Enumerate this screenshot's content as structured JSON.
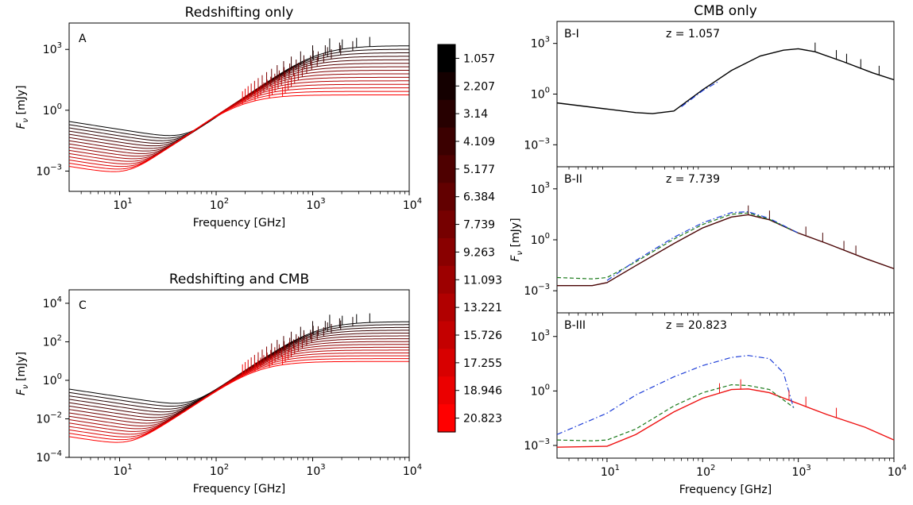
{
  "chart_data": [
    {
      "id": "A",
      "type": "line",
      "title": "Redshifting only",
      "panel_label": "A",
      "xlabel": "Frequency [GHz]",
      "ylabel": "F_ν [mJy]",
      "xscale": "log",
      "yscale": "log",
      "xlim": [
        3,
        10000
      ],
      "ylim": [
        0.0001,
        20000
      ],
      "xticks": [
        {
          "v": 10,
          "b": "10",
          "e": "1"
        },
        {
          "v": 100,
          "b": "10",
          "e": "2"
        },
        {
          "v": 1000,
          "b": "10",
          "e": "3"
        },
        {
          "v": 10000,
          "b": "10",
          "e": "4"
        }
      ],
      "yticks": [
        {
          "v": 0.001,
          "b": "10",
          "e": "−3"
        },
        {
          "v": 1,
          "b": "10",
          "e": "0"
        },
        {
          "v": 1000,
          "b": "10",
          "e": "3"
        }
      ],
      "family": {
        "count": 15,
        "peak_start": 480,
        "peak_end": 1.8,
        "nu_peak_start": 1100,
        "nu_peak_end": 185,
        "low_start": 0.28,
        "low_end": 0.0017,
        "cmb_drop": false
      }
    },
    {
      "id": "C",
      "type": "line",
      "title": "Redshifting and CMB",
      "panel_label": "C",
      "xlabel": "Frequency [GHz]",
      "ylabel": "F_ν [mJy]",
      "xscale": "log",
      "yscale": "log",
      "xlim": [
        3,
        10000
      ],
      "ylim": [
        0.0001,
        50000
      ],
      "xticks": [
        {
          "v": 10,
          "b": "10",
          "e": "1"
        },
        {
          "v": 100,
          "b": "10",
          "e": "2"
        },
        {
          "v": 1000,
          "b": "10",
          "e": "3"
        },
        {
          "v": 10000,
          "b": "10",
          "e": "4"
        }
      ],
      "yticks": [
        {
          "v": 0.0001,
          "b": "10",
          "e": "−4"
        },
        {
          "v": 0.01,
          "b": "10",
          "e": "−2"
        },
        {
          "v": 1,
          "b": "10",
          "e": "0"
        },
        {
          "v": 100,
          "b": "10",
          "e": "2"
        },
        {
          "v": 10000,
          "b": "10",
          "e": "4"
        }
      ],
      "family": {
        "count": 15,
        "peak_start": 350,
        "peak_end": 3.0,
        "nu_peak_start": 1100,
        "nu_peak_end": 250,
        "low_start": 0.35,
        "low_end": 0.0012,
        "cmb_drop": true
      }
    },
    {
      "id": "B-I",
      "type": "line",
      "title": "CMB only",
      "panel_label": "B-I",
      "annotation": "z = 1.057",
      "xscale": "log",
      "yscale": "log",
      "xlim": [
        3,
        10000
      ],
      "ylim": [
        5e-05,
        20000
      ],
      "yticks": [
        {
          "v": 0.001,
          "b": "10",
          "e": "−3"
        },
        {
          "v": 1,
          "b": "10",
          "e": "0"
        },
        {
          "v": 1000,
          "b": "10",
          "e": "3"
        }
      ],
      "curves": [
        {
          "style": "solid",
          "color": "#000000",
          "points": [
            [
              3,
              0.3
            ],
            [
              10,
              0.13
            ],
            [
              20,
              0.08
            ],
            [
              30,
              0.07
            ],
            [
              50,
              0.1
            ],
            [
              100,
              1.8
            ],
            [
              200,
              25
            ],
            [
              400,
              180
            ],
            [
              700,
              400
            ],
            [
              1000,
              480
            ],
            [
              1500,
              320
            ],
            [
              3000,
              80
            ],
            [
              6000,
              18
            ],
            [
              10000,
              7
            ]
          ]
        },
        {
          "style": "dashdot",
          "color": "#1f3fd8",
          "points": [
            [
              60,
              0.18
            ],
            [
              100,
              1.6
            ],
            [
              150,
              6
            ]
          ]
        }
      ]
    },
    {
      "id": "B-II",
      "type": "line",
      "panel_label": "B-II",
      "annotation": "z = 7.739",
      "ylabel": "F_ν [mJy]",
      "xscale": "log",
      "yscale": "log",
      "xlim": [
        3,
        10000
      ],
      "ylim": [
        5e-05,
        20000
      ],
      "yticks": [
        {
          "v": 0.001,
          "b": "10",
          "e": "−3"
        },
        {
          "v": 1,
          "b": "10",
          "e": "0"
        },
        {
          "v": 1000,
          "b": "10",
          "e": "3"
        }
      ],
      "curves": [
        {
          "style": "solid",
          "color": "#4a0505",
          "points": [
            [
              3,
              0.002
            ],
            [
              7,
              0.002
            ],
            [
              10,
              0.003
            ],
            [
              20,
              0.03
            ],
            [
              50,
              0.6
            ],
            [
              100,
              5
            ],
            [
              200,
              22
            ],
            [
              300,
              30
            ],
            [
              500,
              15
            ],
            [
              1000,
              2.5
            ],
            [
              2000,
              0.6
            ],
            [
              5000,
              0.08
            ],
            [
              10000,
              0.02
            ]
          ]
        },
        {
          "style": "dashed",
          "color": "#1a7a1a",
          "points": [
            [
              3,
              0.006
            ],
            [
              7,
              0.005
            ],
            [
              10,
              0.006
            ],
            [
              20,
              0.05
            ],
            [
              50,
              1.1
            ],
            [
              100,
              8
            ],
            [
              200,
              32
            ],
            [
              300,
              38
            ],
            [
              500,
              16
            ],
            [
              1000,
              2.5
            ]
          ]
        },
        {
          "style": "dashdot",
          "color": "#1f3fd8",
          "points": [
            [
              10,
              0.004
            ],
            [
              20,
              0.06
            ],
            [
              50,
              1.4
            ],
            [
              100,
              10
            ],
            [
              200,
              40
            ],
            [
              300,
              45
            ],
            [
              500,
              18
            ],
            [
              1000,
              2.5
            ]
          ]
        }
      ]
    },
    {
      "id": "B-III",
      "type": "line",
      "panel_label": "B-III",
      "annotation": "z = 20.823",
      "xlabel": "Frequency [GHz]",
      "xscale": "log",
      "yscale": "log",
      "xlim": [
        3,
        10000
      ],
      "ylim": [
        0.0002,
        20000
      ],
      "xticks": [
        {
          "v": 10,
          "b": "10",
          "e": "1"
        },
        {
          "v": 100,
          "b": "10",
          "e": "2"
        },
        {
          "v": 1000,
          "b": "10",
          "e": "3"
        },
        {
          "v": 10000,
          "b": "10",
          "e": "4"
        }
      ],
      "yticks": [
        {
          "v": 0.001,
          "b": "10",
          "e": "−3"
        },
        {
          "v": 1,
          "b": "10",
          "e": "0"
        },
        {
          "v": 1000,
          "b": "10",
          "e": "3"
        }
      ],
      "curves": [
        {
          "style": "solid",
          "color": "#ee1111",
          "points": [
            [
              3,
              0.0008
            ],
            [
              10,
              0.0009
            ],
            [
              20,
              0.004
            ],
            [
              50,
              0.07
            ],
            [
              100,
              0.4
            ],
            [
              200,
              1.2
            ],
            [
              300,
              1.3
            ],
            [
              500,
              0.8
            ],
            [
              1000,
              0.2
            ],
            [
              2000,
              0.05
            ],
            [
              5000,
              0.01
            ],
            [
              10000,
              0.002
            ]
          ]
        },
        {
          "style": "dashed",
          "color": "#1a7a1a",
          "points": [
            [
              3,
              0.002
            ],
            [
              7,
              0.0018
            ],
            [
              10,
              0.002
            ],
            [
              20,
              0.008
            ],
            [
              50,
              0.15
            ],
            [
              100,
              0.8
            ],
            [
              200,
              2.2
            ],
            [
              300,
              2.0
            ],
            [
              500,
              1.2
            ],
            [
              900,
              0.12
            ]
          ]
        },
        {
          "style": "dashdot",
          "color": "#1f3fd8",
          "points": [
            [
              3,
              0.004
            ],
            [
              10,
              0.06
            ],
            [
              20,
              0.6
            ],
            [
              50,
              6
            ],
            [
              100,
              25
            ],
            [
              200,
              70
            ],
            [
              300,
              90
            ],
            [
              500,
              60
            ],
            [
              700,
              10
            ],
            [
              900,
              0.1
            ]
          ]
        }
      ]
    },
    {
      "id": "colorbar",
      "type": "heatmap",
      "colormap": [
        "#000000",
        "#ff0000"
      ],
      "levels": [
        "1.057",
        "2.207",
        "3.14",
        "4.109",
        "5.177",
        "6.384",
        "7.739",
        "9.263",
        "11.093",
        "13.221",
        "15.726",
        "17.255",
        "18.946",
        "20.823"
      ]
    }
  ]
}
